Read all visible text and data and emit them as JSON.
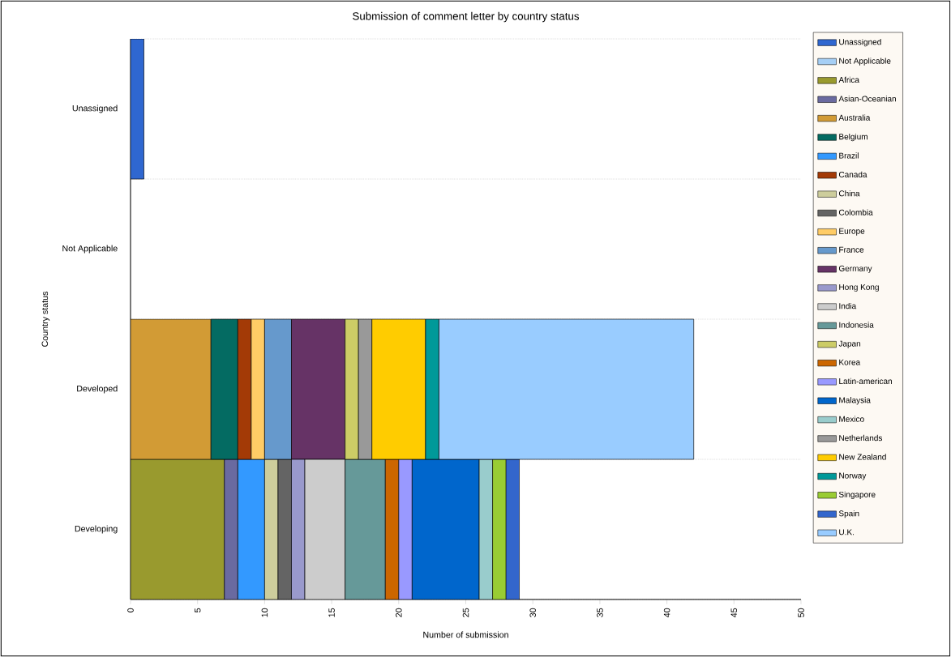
{
  "chart_data": {
    "type": "bar",
    "orientation": "horizontal",
    "stacked": true,
    "title": "Submission of comment letter by country status",
    "xlabel": "Number of submission",
    "ylabel": "Country status",
    "categories": [
      "Unassigned",
      "Not Applicable",
      "Developed",
      "Developing"
    ],
    "xlim": [
      0,
      50
    ],
    "xticks": [
      0,
      5,
      10,
      15,
      20,
      25,
      30,
      35,
      40,
      45,
      50
    ],
    "grid": "y",
    "legend": "right",
    "series": [
      {
        "name": "Unassigned",
        "color": "#2f67d0",
        "values": [
          1,
          null,
          null,
          null
        ]
      },
      {
        "name": "Not Applicable",
        "color": "#a6cff5",
        "values": [
          null,
          null,
          null,
          null
        ]
      },
      {
        "name": "Africa",
        "color": "#999a2e",
        "values": [
          null,
          null,
          null,
          7
        ]
      },
      {
        "name": "Asian-Oceanian",
        "color": "#6a6aa0",
        "values": [
          null,
          null,
          null,
          1
        ]
      },
      {
        "name": "Australia",
        "color": "#d29b35",
        "values": [
          null,
          null,
          6,
          null
        ]
      },
      {
        "name": "Belgium",
        "color": "#046b62",
        "values": [
          null,
          null,
          2,
          null
        ]
      },
      {
        "name": "Brazil",
        "color": "#3399ff",
        "values": [
          null,
          null,
          null,
          2
        ]
      },
      {
        "name": "Canada",
        "color": "#a33a06",
        "values": [
          null,
          null,
          1,
          null
        ]
      },
      {
        "name": "China",
        "color": "#cdcd9c",
        "values": [
          null,
          null,
          null,
          1
        ]
      },
      {
        "name": "Colombia",
        "color": "#646464",
        "values": [
          null,
          null,
          null,
          1
        ]
      },
      {
        "name": "Europe",
        "color": "#ffcc66",
        "values": [
          null,
          null,
          1,
          null
        ]
      },
      {
        "name": "France",
        "color": "#6699cc",
        "values": [
          null,
          null,
          2,
          null
        ]
      },
      {
        "name": "Germany",
        "color": "#663366",
        "values": [
          null,
          null,
          4,
          null
        ]
      },
      {
        "name": "Hong Kong",
        "color": "#9999cc",
        "values": [
          null,
          null,
          null,
          1
        ]
      },
      {
        "name": "India",
        "color": "#cccccc",
        "values": [
          null,
          null,
          null,
          3
        ]
      },
      {
        "name": "Indonesia",
        "color": "#669999",
        "values": [
          null,
          null,
          null,
          3
        ]
      },
      {
        "name": "Japan",
        "color": "#cccc66",
        "values": [
          null,
          null,
          1,
          null
        ]
      },
      {
        "name": "Korea",
        "color": "#cc6600",
        "values": [
          null,
          null,
          null,
          1
        ]
      },
      {
        "name": "Latin-american",
        "color": "#9999ff",
        "values": [
          null,
          null,
          null,
          1
        ]
      },
      {
        "name": "Malaysia",
        "color": "#0066cc",
        "values": [
          null,
          null,
          null,
          5
        ]
      },
      {
        "name": "Mexico",
        "color": "#99cccc",
        "values": [
          null,
          null,
          null,
          1
        ]
      },
      {
        "name": "Netherlands",
        "color": "#999999",
        "values": [
          null,
          null,
          1,
          null
        ]
      },
      {
        "name": "New Zealand",
        "color": "#ffcc00",
        "values": [
          null,
          null,
          4,
          null
        ]
      },
      {
        "name": "Norway",
        "color": "#009999",
        "values": [
          null,
          null,
          1,
          null
        ]
      },
      {
        "name": "Singapore",
        "color": "#99cc33",
        "values": [
          null,
          null,
          null,
          1
        ]
      },
      {
        "name": "Spain",
        "color": "#3366cc",
        "values": [
          null,
          null,
          null,
          1
        ]
      },
      {
        "name": "U.K.",
        "color": "#99ccff",
        "values": [
          null,
          null,
          19,
          null
        ]
      }
    ]
  }
}
